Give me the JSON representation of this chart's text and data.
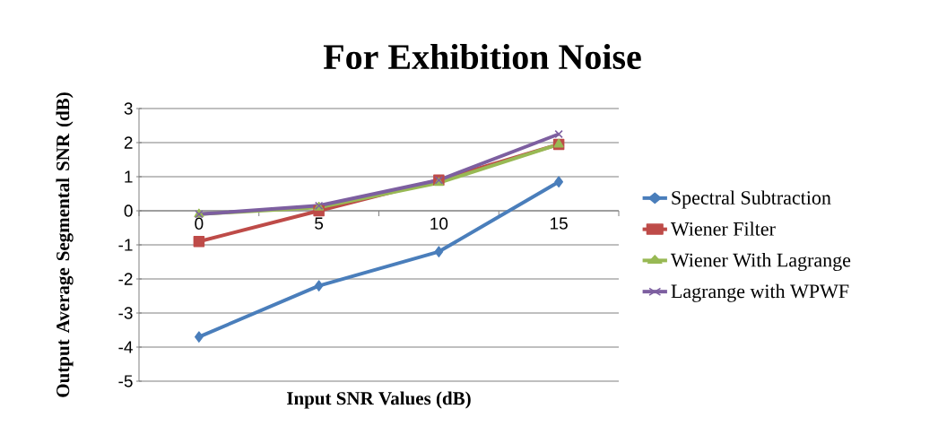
{
  "chart_data": {
    "type": "line",
    "title": "For Exhibition Noise",
    "xlabel": "Input SNR Values (dB)",
    "ylabel": "Output Average Segmental SNR (dB)",
    "categories": [
      "0",
      "5",
      "10",
      "15"
    ],
    "series": [
      {
        "name": "Spectral Subtraction",
        "color": "#4a7ebb",
        "marker": "diamond",
        "values": [
          -3.7,
          -2.2,
          -1.2,
          0.85
        ]
      },
      {
        "name": "Wiener Filter",
        "color": "#be4b48",
        "marker": "square",
        "values": [
          -0.9,
          0,
          0.9,
          1.95
        ]
      },
      {
        "name": "Wiener With Lagrange",
        "color": "#98b954",
        "marker": "triangle",
        "values": [
          -0.1,
          0.1,
          0.82,
          1.95
        ]
      },
      {
        "name": "Lagrange with WPWF",
        "color": "#7d5fa0",
        "marker": "cross",
        "values": [
          -0.1,
          0.15,
          0.9,
          2.25
        ]
      }
    ],
    "ylim": [
      -5,
      3
    ],
    "yticks": [
      -5,
      -4,
      -3,
      -2,
      -1,
      0,
      1,
      2,
      3
    ],
    "grid": "y",
    "legend": "right"
  }
}
